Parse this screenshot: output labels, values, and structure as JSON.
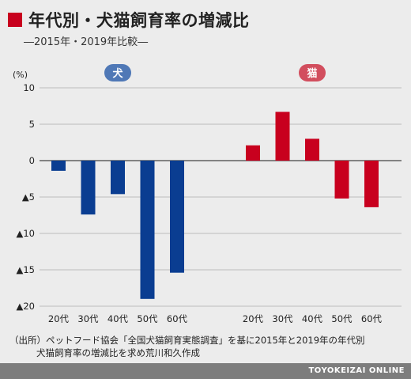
{
  "header": {
    "title": "年代別・犬猫飼育率の増減比",
    "subtitle": "―2015年・2019年比較―"
  },
  "chart_data": {
    "type": "bar",
    "ylabel": "(%)",
    "ylim": [
      -20,
      10
    ],
    "yticks": [
      {
        "value": 10,
        "label": "10"
      },
      {
        "value": 5,
        "label": "5"
      },
      {
        "value": 0,
        "label": "0"
      },
      {
        "value": -5,
        "label": "▲5"
      },
      {
        "value": -10,
        "label": "▲10"
      },
      {
        "value": -15,
        "label": "▲15"
      },
      {
        "value": -20,
        "label": "▲20"
      }
    ],
    "grid": true,
    "groups": [
      {
        "name": "犬",
        "color": "#0a3d91",
        "badge_color": "#4f78b6",
        "categories": [
          "20代",
          "30代",
          "40代",
          "50代",
          "60代"
        ],
        "values": [
          -1.4,
          -7.4,
          -4.6,
          -19.0,
          -15.4
        ]
      },
      {
        "name": "猫",
        "color": "#c8001e",
        "badge_color": "#d24e5e",
        "categories": [
          "20代",
          "30代",
          "40代",
          "50代",
          "60代"
        ],
        "values": [
          2.1,
          6.7,
          3.0,
          -5.2,
          -6.4
        ]
      }
    ]
  },
  "source": {
    "line1": "（出所）ペットフード協会「全国犬猫飼育実態調査」を基に2015年と2019年の年代別",
    "line2": "犬猫飼育率の増減比を求め荒川和久作成"
  },
  "footer": {
    "credit": "TOYOKEIZAI ONLINE"
  }
}
